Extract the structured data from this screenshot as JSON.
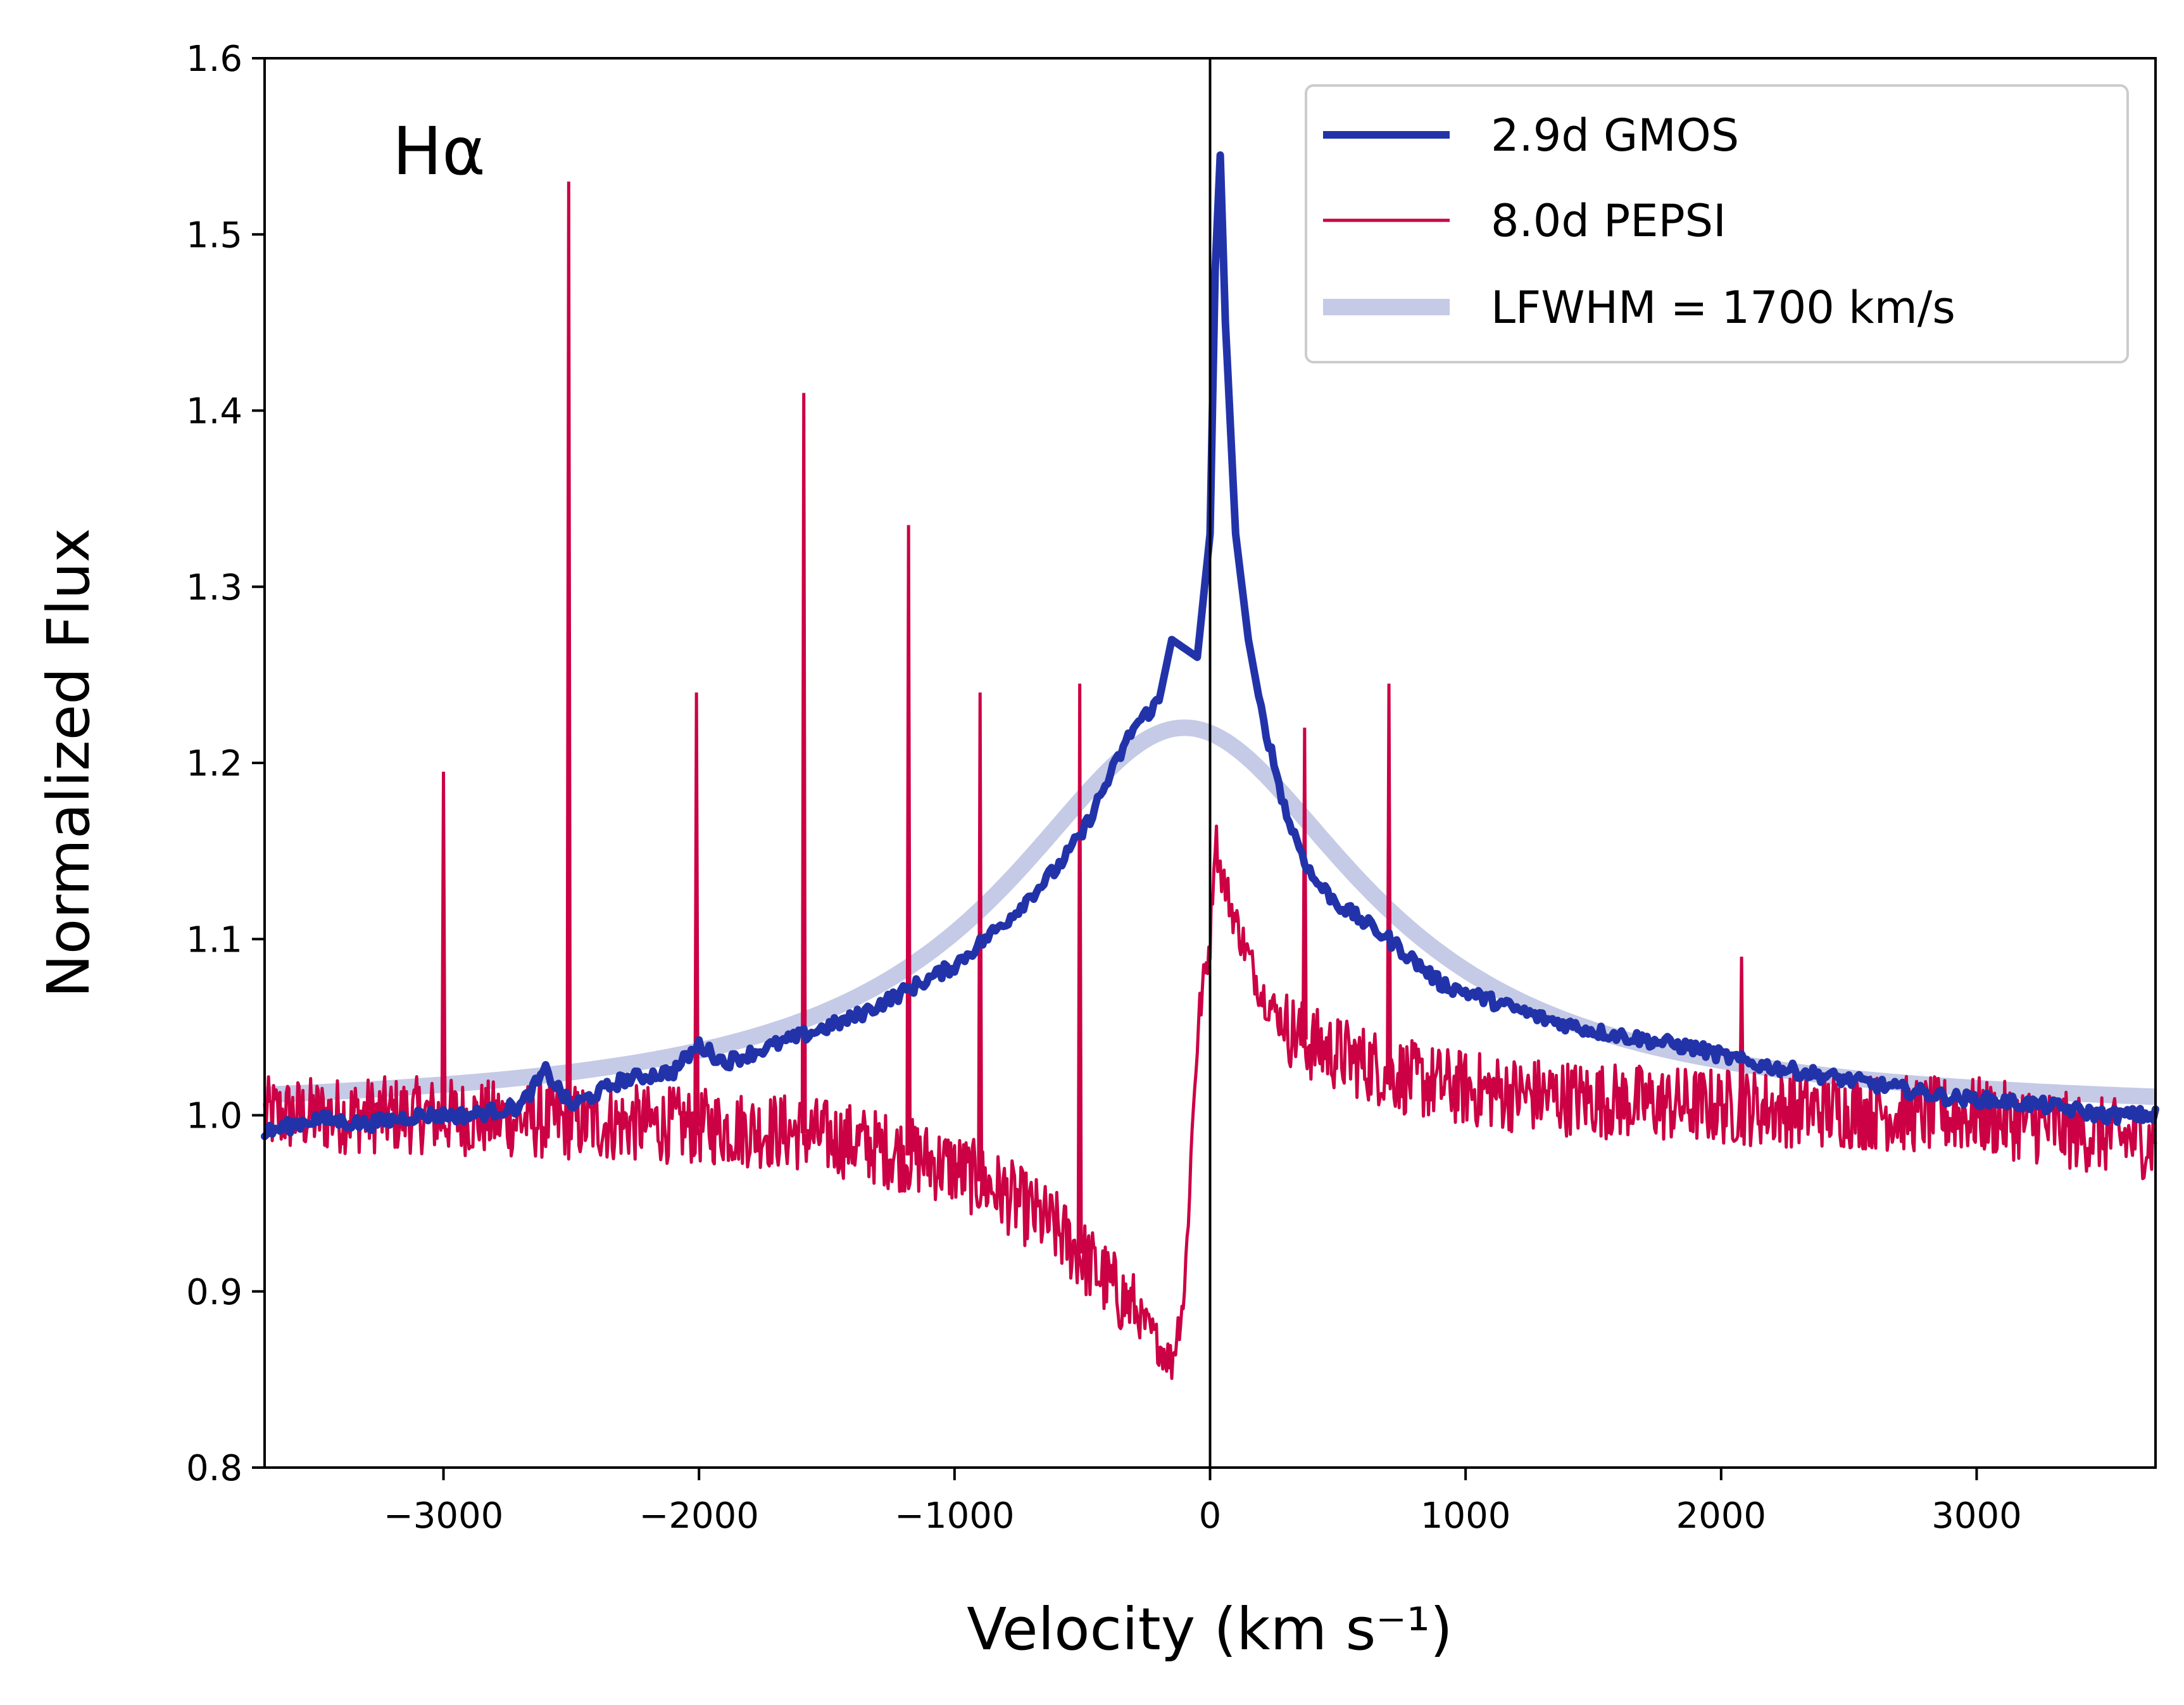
{
  "chart_data": {
    "type": "line",
    "title": "",
    "annotation": "Hα",
    "xlabel": "Velocity (km s⁻¹)",
    "ylabel": "Normalized Flux",
    "xlim": [
      -3700,
      3700
    ],
    "ylim": [
      0.8,
      1.6
    ],
    "x_ticks": [
      -3000,
      -2000,
      -1000,
      0,
      1000,
      2000,
      3000
    ],
    "x_tick_labels": [
      "−3000",
      "−2000",
      "−1000",
      "0",
      "1000",
      "2000",
      "3000"
    ],
    "y_ticks": [
      0.8,
      0.9,
      1.0,
      1.1,
      1.2,
      1.3,
      1.4,
      1.5,
      1.6
    ],
    "y_tick_labels": [
      "0.8",
      "0.9",
      "1.0",
      "1.1",
      "1.2",
      "1.3",
      "1.4",
      "1.5",
      "1.6"
    ],
    "vline_x": 0,
    "legend_position": "top-right",
    "colors": {
      "gmos": "#2233aa",
      "pepsi": "#cc0044",
      "lorentz": "#c5cae6",
      "axis": "#000000"
    },
    "series": [
      {
        "name": "2.9d GMOS",
        "x": [
          -3700,
          -3500,
          -3300,
          -3100,
          -2900,
          -2700,
          -2600,
          -2500,
          -2300,
          -2100,
          -2000,
          -1900,
          -1800,
          -1600,
          -1400,
          -1200,
          -1000,
          -800,
          -600,
          -500,
          -400,
          -300,
          -200,
          -150,
          -100,
          -50,
          0,
          20,
          40,
          60,
          100,
          150,
          200,
          300,
          400,
          500,
          700,
          900,
          1100,
          1300,
          1500,
          1700,
          1900,
          2100,
          2300,
          2500,
          2700,
          2900,
          3100,
          3300,
          3500,
          3700
        ],
        "y": [
          0.99,
          0.998,
          0.995,
          1.0,
          1.0,
          1.005,
          1.025,
          1.005,
          1.02,
          1.025,
          1.04,
          1.03,
          1.035,
          1.045,
          1.055,
          1.07,
          1.085,
          1.11,
          1.14,
          1.16,
          1.19,
          1.22,
          1.235,
          1.27,
          1.265,
          1.26,
          1.33,
          1.48,
          1.545,
          1.45,
          1.33,
          1.27,
          1.23,
          1.17,
          1.135,
          1.12,
          1.1,
          1.075,
          1.065,
          1.055,
          1.048,
          1.043,
          1.038,
          1.03,
          1.025,
          1.02,
          1.015,
          1.01,
          1.008,
          1.005,
          1.0,
          1.0
        ]
      },
      {
        "name": "8.0d PEPSI",
        "x": [
          -3700,
          -3400,
          -3100,
          -2800,
          -2500,
          -2200,
          -1900,
          -1600,
          -1400,
          -1200,
          -1000,
          -800,
          -600,
          -500,
          -400,
          -300,
          -250,
          -200,
          -150,
          -100,
          -80,
          -60,
          -40,
          -20,
          0,
          20,
          40,
          60,
          80,
          100,
          150,
          200,
          300,
          400,
          600,
          800,
          1000,
          1200,
          1400,
          1600,
          1800,
          2000,
          2200,
          2400,
          2600,
          2800,
          3000,
          3200,
          3400,
          3700
        ],
        "y": [
          1.0,
          1.0,
          1.0,
          0.998,
          0.996,
          0.995,
          0.993,
          0.99,
          0.985,
          0.978,
          0.97,
          0.955,
          0.935,
          0.92,
          0.905,
          0.89,
          0.88,
          0.87,
          0.86,
          0.9,
          0.96,
          1.02,
          1.06,
          1.08,
          1.1,
          1.16,
          1.14,
          1.13,
          1.12,
          1.11,
          1.09,
          1.07,
          1.05,
          1.04,
          1.03,
          1.02,
          1.015,
          1.012,
          1.01,
          1.008,
          1.006,
          1.005,
          1.004,
          1.003,
          1.002,
          1.0,
          1.0,
          0.995,
          0.99,
          0.985
        ]
      },
      {
        "name": "LFWHM = 1700 km/s",
        "center": -100,
        "fwhm": 1700,
        "peak": 1.22,
        "baseline": 1.0
      }
    ],
    "emission_spikes": [
      {
        "x": -3000,
        "y": 1.195
      },
      {
        "x": -2510,
        "y": 1.53
      },
      {
        "x": -2010,
        "y": 1.24
      },
      {
        "x": -1590,
        "y": 1.41
      },
      {
        "x": -1180,
        "y": 1.335
      },
      {
        "x": -900,
        "y": 1.24
      },
      {
        "x": -510,
        "y": 1.245
      },
      {
        "x": 370,
        "y": 1.22
      },
      {
        "x": 700,
        "y": 1.245
      },
      {
        "x": 2080,
        "y": 1.09
      }
    ]
  }
}
